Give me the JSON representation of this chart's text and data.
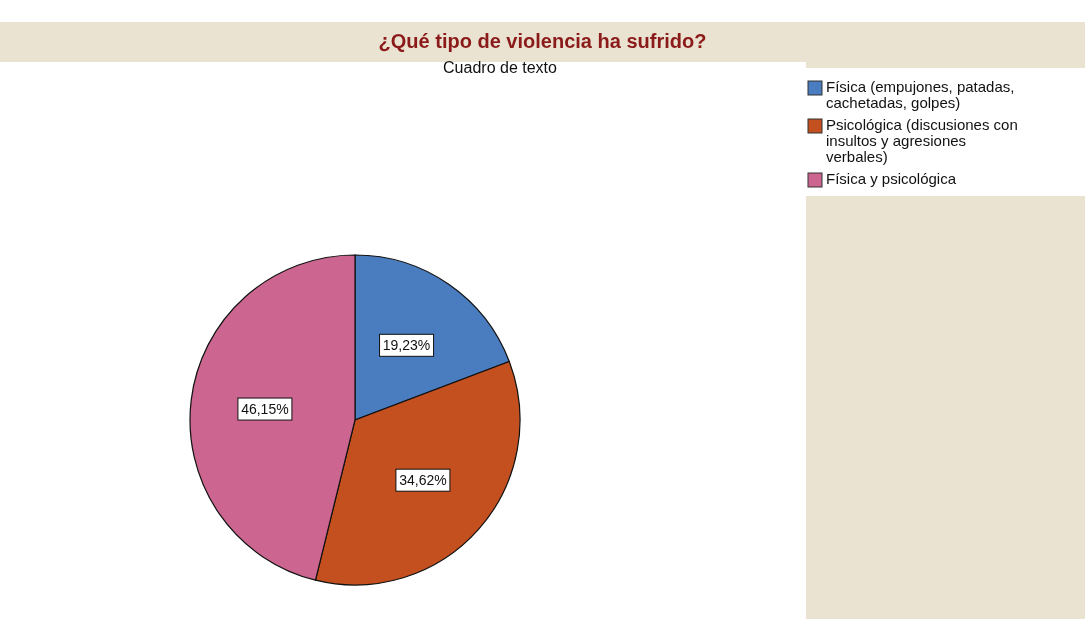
{
  "chart_data": {
    "type": "pie",
    "title": "¿Qué tipo de violencia ha sufrido?",
    "subtitle": "Cuadro de texto",
    "categories": [
      "Física (empujones, patadas, cachetadas, golpes)",
      "Psicológica (discusiones con insultos y agresiones verbales)",
      "Física y psicológica"
    ],
    "values": [
      19.23,
      34.62,
      46.15
    ],
    "value_labels": [
      "19,23%",
      "34,62%",
      "46,15%"
    ],
    "colors": [
      "#4a7cc0",
      "#c4501f",
      "#cc6690"
    ],
    "legend": "right"
  }
}
